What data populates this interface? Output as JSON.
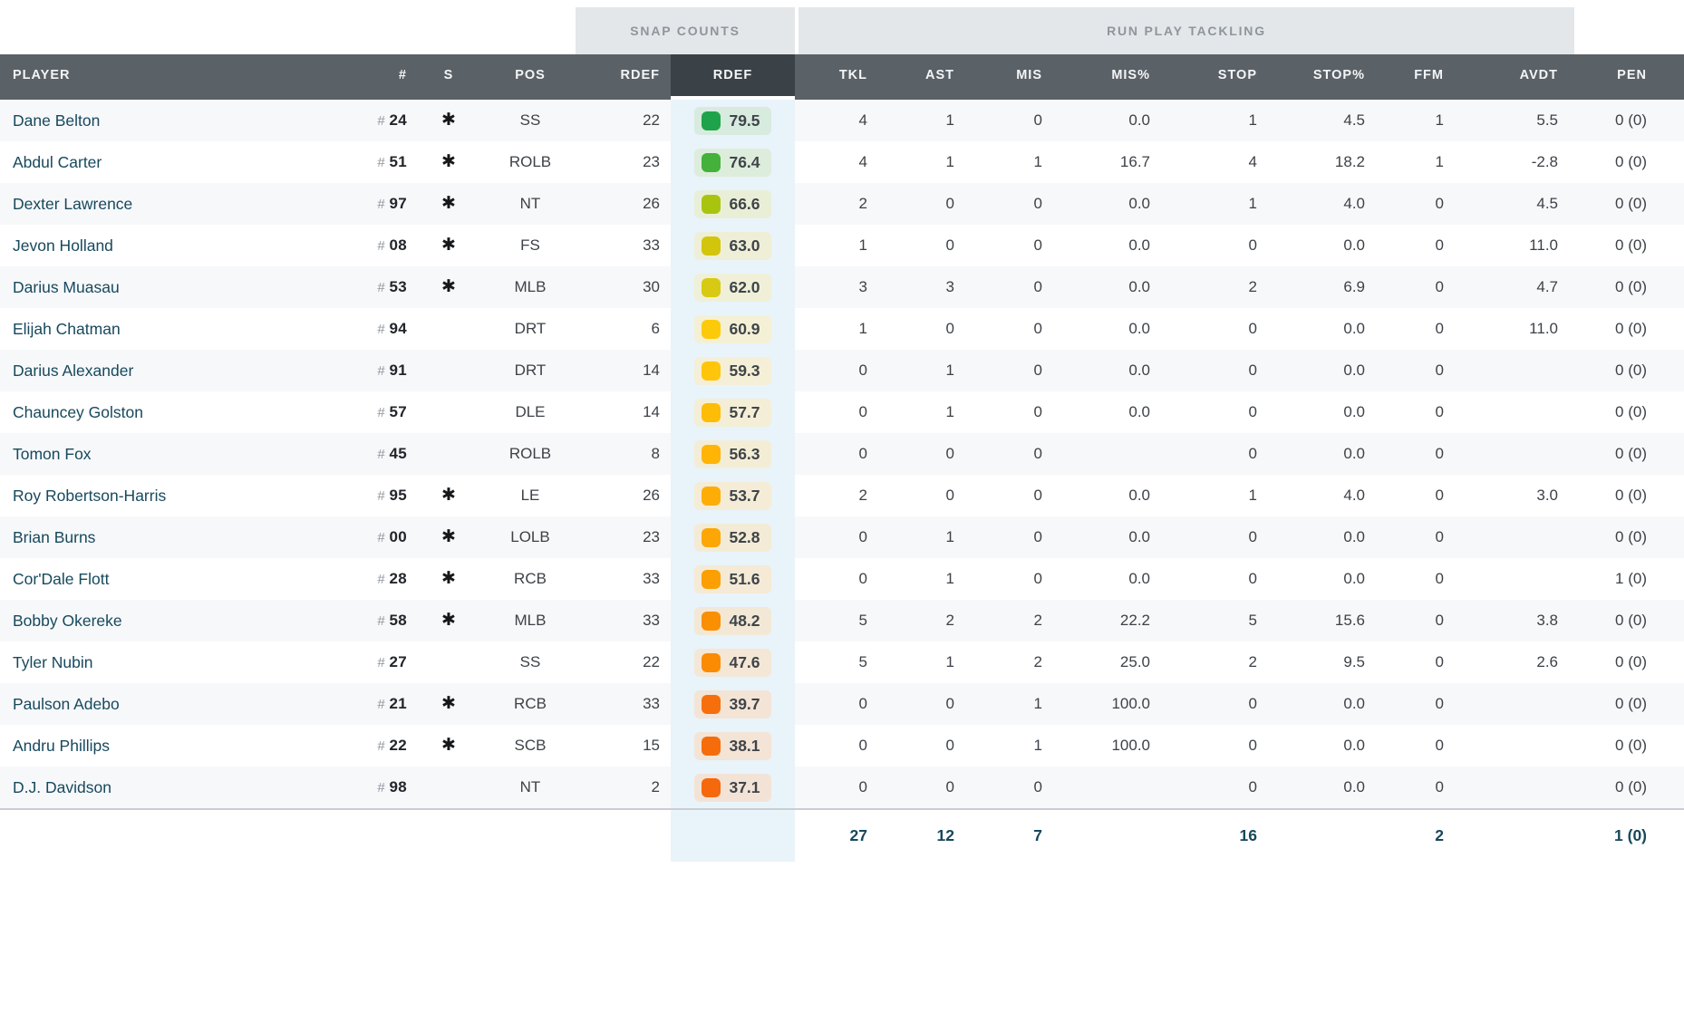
{
  "table": {
    "group_headers": [
      {
        "label": "SNAP COUNTS"
      },
      {
        "label": "RUN PLAY TACKLING"
      }
    ],
    "columns": {
      "player": "PLAYER",
      "jersey": "#",
      "starter": "S",
      "pos": "POS",
      "rdef_snaps": "RDEF",
      "rdef_grade": "RDEF",
      "tkl": "TKL",
      "ast": "AST",
      "mis": "MIS",
      "mis_pct": "MIS%",
      "stop": "STOP",
      "stop_pct": "STOP%",
      "ffm": "FFM",
      "avdt": "AVDT",
      "pen": "PEN"
    },
    "starter_glyph": "✱",
    "rows": [
      {
        "name": "Dane Belton",
        "jersey": "24",
        "starter": true,
        "pos": "SS",
        "snaps": "22",
        "grade": "79.5",
        "grade_dot": "#1fa34a",
        "grade_bg": "#d7ebde",
        "tkl": "4",
        "ast": "1",
        "mis": "0",
        "mis_pct": "0.0",
        "stop": "1",
        "stop_pct": "4.5",
        "ffm": "1",
        "avdt": "5.5",
        "pen": "0 (0)"
      },
      {
        "name": "Abdul Carter",
        "jersey": "51",
        "starter": true,
        "pos": "ROLB",
        "snaps": "23",
        "grade": "76.4",
        "grade_dot": "#43b13a",
        "grade_bg": "#dceddc",
        "tkl": "4",
        "ast": "1",
        "mis": "1",
        "mis_pct": "16.7",
        "stop": "4",
        "stop_pct": "18.2",
        "ffm": "1",
        "avdt": "-2.8",
        "pen": "0 (0)"
      },
      {
        "name": "Dexter Lawrence",
        "jersey": "97",
        "starter": true,
        "pos": "NT",
        "snaps": "26",
        "grade": "66.6",
        "grade_dot": "#a9c40f",
        "grade_bg": "#e9efd7",
        "tkl": "2",
        "ast": "0",
        "mis": "0",
        "mis_pct": "0.0",
        "stop": "1",
        "stop_pct": "4.0",
        "ffm": "0",
        "avdt": "4.5",
        "pen": "0 (0)"
      },
      {
        "name": "Jevon Holland",
        "jersey": "08",
        "starter": true,
        "pos": "FS",
        "snaps": "33",
        "grade": "63.0",
        "grade_dot": "#d3c50c",
        "grade_bg": "#eeefd6",
        "tkl": "1",
        "ast": "0",
        "mis": "0",
        "mis_pct": "0.0",
        "stop": "0",
        "stop_pct": "0.0",
        "ffm": "0",
        "avdt": "11.0",
        "pen": "0 (0)"
      },
      {
        "name": "Darius Muasau",
        "jersey": "53",
        "starter": true,
        "pos": "MLB",
        "snaps": "30",
        "grade": "62.0",
        "grade_dot": "#d8ca12",
        "grade_bg": "#eff0d7",
        "tkl": "3",
        "ast": "3",
        "mis": "0",
        "mis_pct": "0.0",
        "stop": "2",
        "stop_pct": "6.9",
        "ffm": "0",
        "avdt": "4.7",
        "pen": "0 (0)"
      },
      {
        "name": "Elijah Chatman",
        "jersey": "94",
        "starter": false,
        "pos": "DRT",
        "snaps": "6",
        "grade": "60.9",
        "grade_dot": "#fdca09",
        "grade_bg": "#f4f0d6",
        "tkl": "1",
        "ast": "0",
        "mis": "0",
        "mis_pct": "0.0",
        "stop": "0",
        "stop_pct": "0.0",
        "ffm": "0",
        "avdt": "11.0",
        "pen": "0 (0)"
      },
      {
        "name": "Darius Alexander",
        "jersey": "91",
        "starter": false,
        "pos": "DRT",
        "snaps": "14",
        "grade": "59.3",
        "grade_dot": "#ffc50a",
        "grade_bg": "#f4efd6",
        "tkl": "0",
        "ast": "1",
        "mis": "0",
        "mis_pct": "0.0",
        "stop": "0",
        "stop_pct": "0.0",
        "ffm": "0",
        "avdt": "",
        "pen": "0 (0)"
      },
      {
        "name": "Chauncey Golston",
        "jersey": "57",
        "starter": false,
        "pos": "DLE",
        "snaps": "14",
        "grade": "57.7",
        "grade_dot": "#fdbc06",
        "grade_bg": "#f4eed6",
        "tkl": "0",
        "ast": "1",
        "mis": "0",
        "mis_pct": "0.0",
        "stop": "0",
        "stop_pct": "0.0",
        "ffm": "0",
        "avdt": "",
        "pen": "0 (0)"
      },
      {
        "name": "Tomon Fox",
        "jersey": "45",
        "starter": false,
        "pos": "ROLB",
        "snaps": "8",
        "grade": "56.3",
        "grade_dot": "#ffb406",
        "grade_bg": "#f4edd6",
        "tkl": "0",
        "ast": "0",
        "mis": "0",
        "mis_pct": "",
        "stop": "0",
        "stop_pct": "0.0",
        "ffm": "0",
        "avdt": "",
        "pen": "0 (0)"
      },
      {
        "name": "Roy Robertson-Harris",
        "jersey": "95",
        "starter": true,
        "pos": "LE",
        "snaps": "26",
        "grade": "53.7",
        "grade_dot": "#fdad05",
        "grade_bg": "#f4ecd6",
        "tkl": "2",
        "ast": "0",
        "mis": "0",
        "mis_pct": "0.0",
        "stop": "1",
        "stop_pct": "4.0",
        "ffm": "0",
        "avdt": "3.0",
        "pen": "0 (0)"
      },
      {
        "name": "Brian Burns",
        "jersey": "00",
        "starter": true,
        "pos": "LOLB",
        "snaps": "23",
        "grade": "52.8",
        "grade_dot": "#fca705",
        "grade_bg": "#f4ebd6",
        "tkl": "0",
        "ast": "1",
        "mis": "0",
        "mis_pct": "0.0",
        "stop": "0",
        "stop_pct": "0.0",
        "ffm": "0",
        "avdt": "",
        "pen": "0 (0)"
      },
      {
        "name": "Cor'Dale Flott",
        "jersey": "28",
        "starter": true,
        "pos": "RCB",
        "snaps": "33",
        "grade": "51.6",
        "grade_dot": "#fb9f03",
        "grade_bg": "#f4ead6",
        "tkl": "0",
        "ast": "1",
        "mis": "0",
        "mis_pct": "0.0",
        "stop": "0",
        "stop_pct": "0.0",
        "ffm": "0",
        "avdt": "",
        "pen": "1 (0)"
      },
      {
        "name": "Bobby Okereke",
        "jersey": "58",
        "starter": true,
        "pos": "MLB",
        "snaps": "33",
        "grade": "48.2",
        "grade_dot": "#f98f01",
        "grade_bg": "#f3e8d5",
        "tkl": "5",
        "ast": "2",
        "mis": "2",
        "mis_pct": "22.2",
        "stop": "5",
        "stop_pct": "15.6",
        "ffm": "0",
        "avdt": "3.8",
        "pen": "0 (0)"
      },
      {
        "name": "Tyler Nubin",
        "jersey": "27",
        "starter": false,
        "pos": "SS",
        "snaps": "22",
        "grade": "47.6",
        "grade_dot": "#fb8b03",
        "grade_bg": "#f4e7d6",
        "tkl": "5",
        "ast": "1",
        "mis": "2",
        "mis_pct": "25.0",
        "stop": "2",
        "stop_pct": "9.5",
        "ffm": "0",
        "avdt": "2.6",
        "pen": "0 (0)"
      },
      {
        "name": "Paulson Adebo",
        "jersey": "21",
        "starter": true,
        "pos": "RCB",
        "snaps": "33",
        "grade": "39.7",
        "grade_dot": "#f76f0c",
        "grade_bg": "#f3e4d6",
        "tkl": "0",
        "ast": "0",
        "mis": "1",
        "mis_pct": "100.0",
        "stop": "0",
        "stop_pct": "0.0",
        "ffm": "0",
        "avdt": "",
        "pen": "0 (0)"
      },
      {
        "name": "Andru Phillips",
        "jersey": "22",
        "starter": true,
        "pos": "SCB",
        "snaps": "15",
        "grade": "38.1",
        "grade_dot": "#f66c0a",
        "grade_bg": "#f3e4d6",
        "tkl": "0",
        "ast": "0",
        "mis": "1",
        "mis_pct": "100.0",
        "stop": "0",
        "stop_pct": "0.0",
        "ffm": "0",
        "avdt": "",
        "pen": "0 (0)"
      },
      {
        "name": "D.J. Davidson",
        "jersey": "98",
        "starter": false,
        "pos": "NT",
        "snaps": "2",
        "grade": "37.1",
        "grade_dot": "#f5680b",
        "grade_bg": "#f3e3d6",
        "tkl": "0",
        "ast": "0",
        "mis": "0",
        "mis_pct": "",
        "stop": "0",
        "stop_pct": "0.0",
        "ffm": "0",
        "avdt": "",
        "pen": "0 (0)"
      }
    ],
    "totals": {
      "tkl": "27",
      "ast": "12",
      "mis": "7",
      "stop": "16",
      "ffm": "2",
      "pen": "1 (0)"
    }
  },
  "colors": {
    "header_bg": "#5a6167",
    "header_selected_bg": "#3a4147",
    "band_bg": "#e4e7e9",
    "band_text": "#8e969d",
    "row_stripe": "#f7f8fa",
    "selected_column_tint": "#e9f3fa",
    "player_link": "#17495d",
    "totals_text": "#16485c",
    "divider": "#c9ced2"
  }
}
